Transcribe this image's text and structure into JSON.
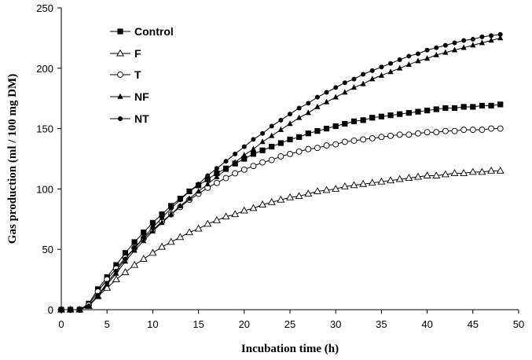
{
  "chart_data": {
    "type": "line",
    "xlabel": "Incubation time (h)",
    "ylabel": "Gas production (ml / 100 mg DM)",
    "xlim": [
      0,
      50
    ],
    "ylim": [
      0,
      250
    ],
    "xticks": [
      0,
      5,
      10,
      15,
      20,
      25,
      30,
      35,
      40,
      45,
      50
    ],
    "yticks": [
      0,
      50,
      100,
      150,
      200,
      250
    ],
    "grid": false,
    "legend_position": "top-left",
    "x": [
      0,
      1,
      2,
      3,
      4,
      5,
      6,
      7,
      8,
      9,
      10,
      11,
      12,
      13,
      14,
      15,
      16,
      17,
      18,
      19,
      20,
      21,
      22,
      23,
      24,
      25,
      26,
      27,
      28,
      29,
      30,
      31,
      32,
      33,
      34,
      35,
      36,
      37,
      38,
      39,
      40,
      41,
      42,
      43,
      44,
      45,
      46,
      47,
      48
    ],
    "series": [
      {
        "name": "Control",
        "marker": "filled-square",
        "values": [
          0,
          0,
          0,
          5,
          17,
          27,
          37,
          47,
          56,
          64,
          72,
          79,
          86,
          92,
          98,
          103,
          108,
          113,
          117,
          121,
          125,
          129,
          132,
          135,
          138,
          141,
          143,
          146,
          148,
          150,
          152,
          154,
          156,
          157,
          159,
          160,
          161,
          162,
          163,
          164,
          165,
          166,
          167,
          167,
          168,
          168,
          169,
          169,
          170
        ]
      },
      {
        "name": "F",
        "marker": "open-triangle",
        "values": [
          0,
          0,
          0,
          3,
          11,
          18,
          25,
          31,
          37,
          42,
          47,
          52,
          56,
          60,
          64,
          67,
          71,
          74,
          77,
          79,
          82,
          84,
          87,
          89,
          91,
          93,
          94,
          96,
          98,
          99,
          100,
          102,
          103,
          104,
          105,
          106,
          107,
          108,
          109,
          110,
          111,
          111,
          112,
          113,
          113,
          114,
          114,
          115,
          115
        ]
      },
      {
        "name": "T",
        "marker": "open-circle",
        "values": [
          0,
          0,
          0,
          4,
          15,
          25,
          34,
          43,
          51,
          59,
          66,
          73,
          79,
          85,
          91,
          96,
          101,
          105,
          109,
          113,
          116,
          119,
          122,
          124,
          127,
          129,
          131,
          133,
          134,
          136,
          137,
          139,
          140,
          141,
          142,
          143,
          144,
          145,
          145,
          146,
          147,
          147,
          148,
          148,
          149,
          149,
          149,
          150,
          150
        ]
      },
      {
        "name": "NF",
        "marker": "filled-triangle",
        "values": [
          0,
          0,
          0,
          3,
          11,
          21,
          30,
          40,
          49,
          57,
          65,
          72,
          79,
          86,
          92,
          98,
          104,
          110,
          116,
          122,
          128,
          133,
          139,
          144,
          149,
          154,
          159,
          163,
          168,
          172,
          176,
          180,
          184,
          187,
          191,
          194,
          197,
          200,
          203,
          206,
          208,
          211,
          213,
          215,
          217,
          219,
          221,
          223,
          225
        ]
      },
      {
        "name": "NT",
        "marker": "filled-circle",
        "values": [
          0,
          0,
          0,
          3,
          12,
          22,
          32,
          42,
          51,
          60,
          68,
          76,
          84,
          91,
          98,
          104,
          111,
          117,
          123,
          129,
          135,
          141,
          146,
          152,
          157,
          162,
          167,
          171,
          176,
          180,
          184,
          188,
          191,
          195,
          198,
          201,
          204,
          207,
          210,
          212,
          215,
          217,
          219,
          221,
          223,
          224,
          226,
          227,
          228
        ]
      }
    ]
  },
  "colors": {
    "series": "#000000",
    "axis": "#000000",
    "background": "#ffffff"
  }
}
